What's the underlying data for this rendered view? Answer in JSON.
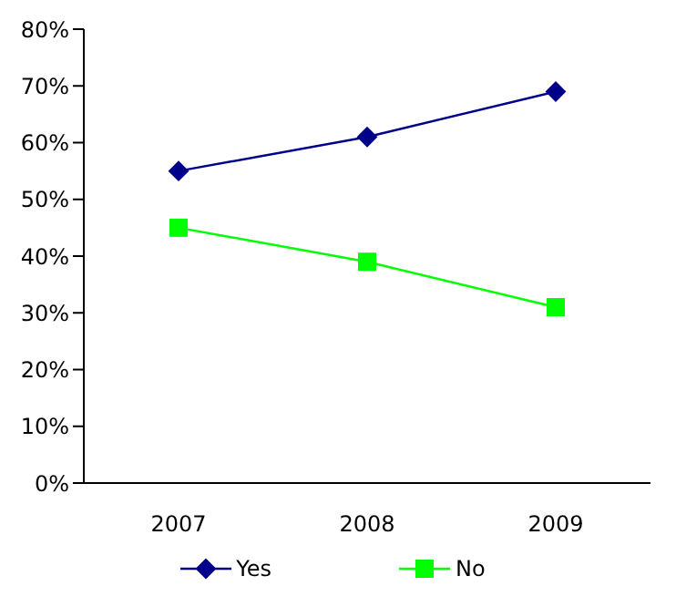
{
  "chart_data": {
    "type": "line",
    "categories": [
      "2007",
      "2008",
      "2009"
    ],
    "series": [
      {
        "name": "Yes",
        "color": "#00008b",
        "values": [
          55,
          61,
          69
        ],
        "marker": "diamond"
      },
      {
        "name": "No",
        "color": "#00ff00",
        "values": [
          45,
          39,
          31
        ],
        "marker": "square"
      }
    ],
    "ylim": [
      0,
      80
    ],
    "yticks": [
      {
        "value": 0,
        "label": "0%"
      },
      {
        "value": 10,
        "label": "10%"
      },
      {
        "value": 20,
        "label": "20%"
      },
      {
        "value": 30,
        "label": "30%"
      },
      {
        "value": 40,
        "label": "40%"
      },
      {
        "value": 50,
        "label": "50%"
      },
      {
        "value": 60,
        "label": "60%"
      },
      {
        "value": 70,
        "label": "70%"
      },
      {
        "value": 80,
        "label": "80%"
      }
    ],
    "grid": false,
    "legend": "bottom",
    "line_style": "solid"
  }
}
